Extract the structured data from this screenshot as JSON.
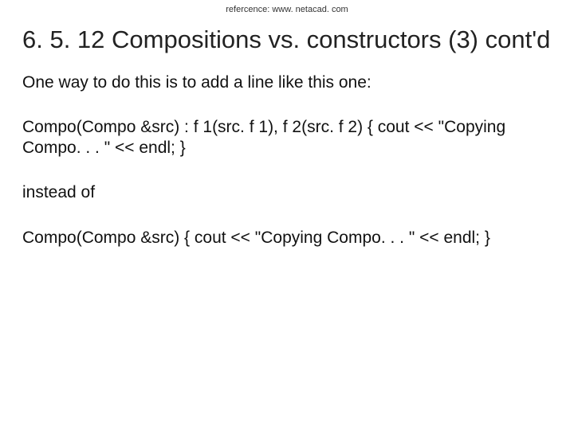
{
  "reference": "refercence: www. netacad. com",
  "title": "6. 5. 12 Compositions vs. constructors (3) cont'd",
  "paragraphs": [
    "One way to do this is to add a line like this one:",
    "Compo(Compo &src) : f 1(src. f 1), f 2(src. f 2) { cout << \"Copying Compo. . . \" << endl; }",
    "instead of",
    "Compo(Compo &src) { cout << \"Copying Compo. . . \" << endl; }"
  ],
  "styles": {
    "background_color": "#ffffff",
    "reference_fontsize": 11,
    "reference_color": "#333333",
    "title_fontsize": 31,
    "title_color": "#222222",
    "body_fontsize": 21,
    "body_color": "#111111",
    "font_family": "Arial"
  }
}
